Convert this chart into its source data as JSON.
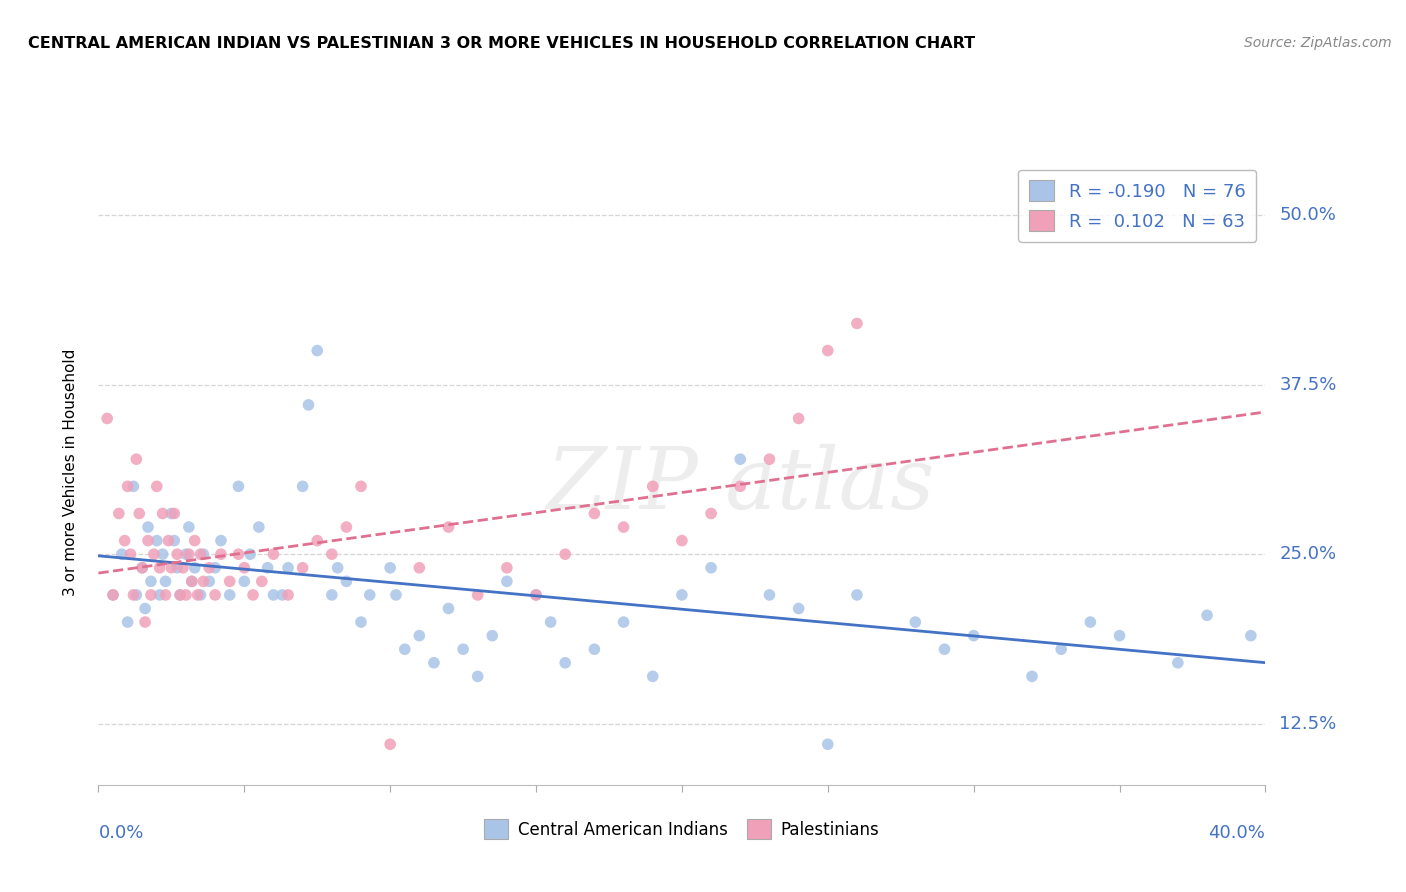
{
  "title": "CENTRAL AMERICAN INDIAN VS PALESTINIAN 3 OR MORE VEHICLES IN HOUSEHOLD CORRELATION CHART",
  "source": "Source: ZipAtlas.com",
  "ylabel_label": "3 or more Vehicles in Household",
  "xlim": [
    0.0,
    40.0
  ],
  "ylim": [
    8.0,
    54.0
  ],
  "y_ticks": [
    12.5,
    25.0,
    37.5,
    50.0
  ],
  "x_ticks": [
    0,
    5,
    10,
    15,
    20,
    25,
    30,
    35,
    40
  ],
  "R_blue": -0.19,
  "N_blue": 76,
  "R_pink": 0.102,
  "N_pink": 63,
  "blue_color": "#aac4e8",
  "pink_color": "#f0a0b8",
  "blue_line_color": "#4472c4",
  "pink_line_color": "#e07090",
  "blue_scatter": [
    [
      0.5,
      22.0
    ],
    [
      0.8,
      25.0
    ],
    [
      1.0,
      20.0
    ],
    [
      1.2,
      30.0
    ],
    [
      1.3,
      22.0
    ],
    [
      1.5,
      24.0
    ],
    [
      1.6,
      21.0
    ],
    [
      1.7,
      27.0
    ],
    [
      1.8,
      23.0
    ],
    [
      2.0,
      26.0
    ],
    [
      2.1,
      22.0
    ],
    [
      2.2,
      25.0
    ],
    [
      2.3,
      23.0
    ],
    [
      2.5,
      28.0
    ],
    [
      2.6,
      26.0
    ],
    [
      2.7,
      24.0
    ],
    [
      2.8,
      22.0
    ],
    [
      3.0,
      25.0
    ],
    [
      3.1,
      27.0
    ],
    [
      3.2,
      23.0
    ],
    [
      3.3,
      24.0
    ],
    [
      3.5,
      22.0
    ],
    [
      3.6,
      25.0
    ],
    [
      3.8,
      23.0
    ],
    [
      4.0,
      24.0
    ],
    [
      4.2,
      26.0
    ],
    [
      4.5,
      22.0
    ],
    [
      4.8,
      30.0
    ],
    [
      5.0,
      23.0
    ],
    [
      5.2,
      25.0
    ],
    [
      5.5,
      27.0
    ],
    [
      5.8,
      24.0
    ],
    [
      6.0,
      22.0
    ],
    [
      6.3,
      22.0
    ],
    [
      6.5,
      24.0
    ],
    [
      7.0,
      30.0
    ],
    [
      7.2,
      36.0
    ],
    [
      7.5,
      40.0
    ],
    [
      8.0,
      22.0
    ],
    [
      8.2,
      24.0
    ],
    [
      8.5,
      23.0
    ],
    [
      9.0,
      20.0
    ],
    [
      9.3,
      22.0
    ],
    [
      10.0,
      24.0
    ],
    [
      10.2,
      22.0
    ],
    [
      10.5,
      18.0
    ],
    [
      11.0,
      19.0
    ],
    [
      11.5,
      17.0
    ],
    [
      12.0,
      21.0
    ],
    [
      12.5,
      18.0
    ],
    [
      13.0,
      16.0
    ],
    [
      13.5,
      19.0
    ],
    [
      14.0,
      23.0
    ],
    [
      15.0,
      22.0
    ],
    [
      15.5,
      20.0
    ],
    [
      16.0,
      17.0
    ],
    [
      17.0,
      18.0
    ],
    [
      18.0,
      20.0
    ],
    [
      19.0,
      16.0
    ],
    [
      20.0,
      22.0
    ],
    [
      21.0,
      24.0
    ],
    [
      22.0,
      32.0
    ],
    [
      23.0,
      22.0
    ],
    [
      24.0,
      21.0
    ],
    [
      25.0,
      11.0
    ],
    [
      26.0,
      22.0
    ],
    [
      28.0,
      20.0
    ],
    [
      29.0,
      18.0
    ],
    [
      30.0,
      19.0
    ],
    [
      32.0,
      16.0
    ],
    [
      33.0,
      18.0
    ],
    [
      34.0,
      20.0
    ],
    [
      35.0,
      19.0
    ],
    [
      37.0,
      17.0
    ],
    [
      38.0,
      20.5
    ],
    [
      39.5,
      19.0
    ]
  ],
  "pink_scatter": [
    [
      0.3,
      35.0
    ],
    [
      0.5,
      22.0
    ],
    [
      0.7,
      28.0
    ],
    [
      0.9,
      26.0
    ],
    [
      1.0,
      30.0
    ],
    [
      1.1,
      25.0
    ],
    [
      1.2,
      22.0
    ],
    [
      1.3,
      32.0
    ],
    [
      1.4,
      28.0
    ],
    [
      1.5,
      24.0
    ],
    [
      1.6,
      20.0
    ],
    [
      1.7,
      26.0
    ],
    [
      1.8,
      22.0
    ],
    [
      1.9,
      25.0
    ],
    [
      2.0,
      30.0
    ],
    [
      2.1,
      24.0
    ],
    [
      2.2,
      28.0
    ],
    [
      2.3,
      22.0
    ],
    [
      2.4,
      26.0
    ],
    [
      2.5,
      24.0
    ],
    [
      2.6,
      28.0
    ],
    [
      2.7,
      25.0
    ],
    [
      2.8,
      22.0
    ],
    [
      2.9,
      24.0
    ],
    [
      3.0,
      22.0
    ],
    [
      3.1,
      25.0
    ],
    [
      3.2,
      23.0
    ],
    [
      3.3,
      26.0
    ],
    [
      3.4,
      22.0
    ],
    [
      3.5,
      25.0
    ],
    [
      3.6,
      23.0
    ],
    [
      3.8,
      24.0
    ],
    [
      4.0,
      22.0
    ],
    [
      4.2,
      25.0
    ],
    [
      4.5,
      23.0
    ],
    [
      4.8,
      25.0
    ],
    [
      5.0,
      24.0
    ],
    [
      5.3,
      22.0
    ],
    [
      5.6,
      23.0
    ],
    [
      6.0,
      25.0
    ],
    [
      6.5,
      22.0
    ],
    [
      7.0,
      24.0
    ],
    [
      7.5,
      26.0
    ],
    [
      8.0,
      25.0
    ],
    [
      8.5,
      27.0
    ],
    [
      9.0,
      30.0
    ],
    [
      10.0,
      11.0
    ],
    [
      11.0,
      24.0
    ],
    [
      12.0,
      27.0
    ],
    [
      13.0,
      22.0
    ],
    [
      14.0,
      24.0
    ],
    [
      15.0,
      22.0
    ],
    [
      16.0,
      25.0
    ],
    [
      17.0,
      28.0
    ],
    [
      18.0,
      27.0
    ],
    [
      19.0,
      30.0
    ],
    [
      20.0,
      26.0
    ],
    [
      21.0,
      28.0
    ],
    [
      22.0,
      30.0
    ],
    [
      23.0,
      32.0
    ],
    [
      24.0,
      35.0
    ],
    [
      25.0,
      40.0
    ],
    [
      26.0,
      42.0
    ]
  ]
}
